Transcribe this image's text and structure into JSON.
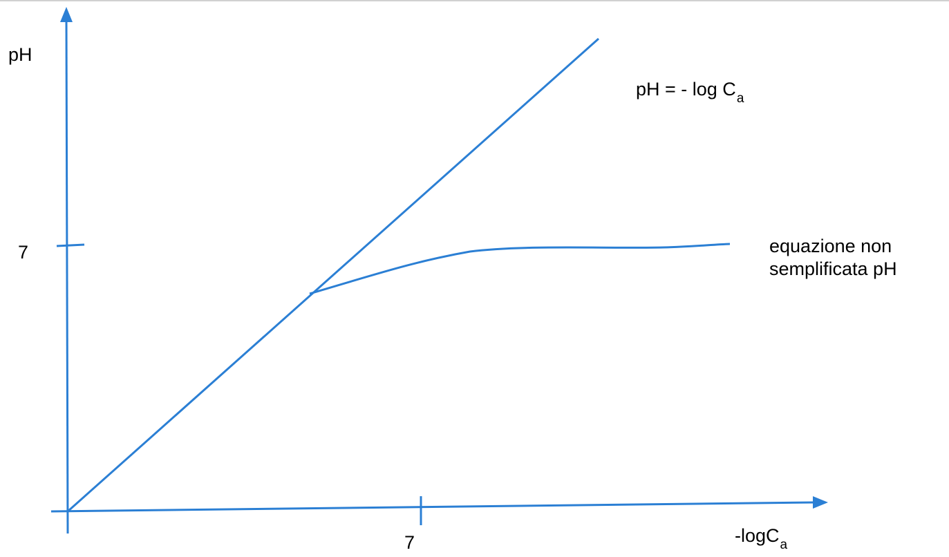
{
  "colors": {
    "stroke": "#2b7fd4",
    "text": "#000000"
  },
  "axes": {
    "y_label": "pH",
    "y_tick": "7",
    "x_tick": "7",
    "x_label_main": "-logC",
    "x_label_sub": "a"
  },
  "annotations": {
    "simplified_main": "pH = - log C",
    "simplified_sub": "a",
    "full_equation": "equazione non semplificata pH"
  }
}
